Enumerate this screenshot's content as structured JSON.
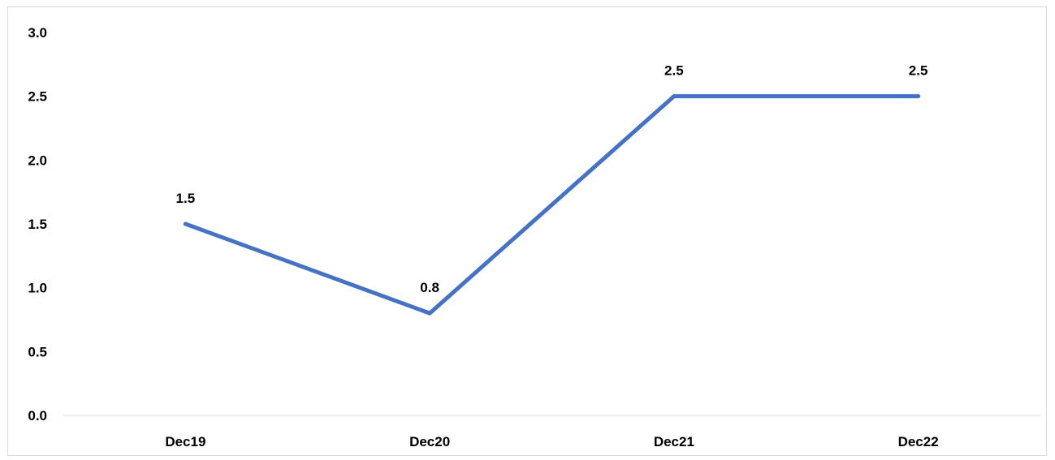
{
  "chart_data": {
    "type": "line",
    "title": "",
    "xlabel": "",
    "ylabel": "",
    "categories": [
      "Dec19",
      "Dec20",
      "Dec21",
      "Dec22"
    ],
    "series": [
      {
        "values": [
          1.5,
          0.8,
          2.5,
          2.5
        ],
        "data_labels": [
          "1.5",
          "0.8",
          "2.5",
          "2.5"
        ],
        "color": "#4472c4"
      }
    ],
    "ylim": [
      0,
      3
    ],
    "yticks": [
      "0.0",
      "0.5",
      "1.0",
      "1.5",
      "2.0",
      "2.5",
      "3.0"
    ],
    "grid": false,
    "legend": "none"
  },
  "colors": {
    "line": "#4472c4",
    "axis": "#d9d9d9",
    "text": "#000000"
  }
}
